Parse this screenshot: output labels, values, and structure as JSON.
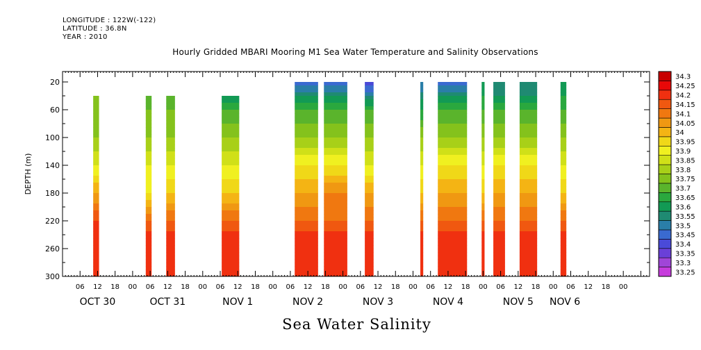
{
  "header": {
    "longitude": "LONGITUDE : 122W(-122)",
    "latitude": "LATITUDE : 36.8N",
    "year": "YEAR : 2010",
    "title": "Hourly Gridded MBARI Mooring M1 Sea Water Temperature and Salinity Observations"
  },
  "chart_data": {
    "type": "heatmap",
    "title": "Hourly Gridded MBARI Mooring M1 Sea Water Temperature and Salinity Observations",
    "xlabel": "Sea Water Salinity",
    "ylabel": "DEPTH (m)",
    "ylim": [
      300,
      5
    ],
    "xlim_hours": [
      0,
      201
    ],
    "y_ticks": [
      20,
      60,
      100,
      140,
      180,
      220,
      260,
      300
    ],
    "x_hour_ticks": [
      "06",
      "12",
      "18",
      "00",
      "06",
      "12",
      "18",
      "00",
      "06",
      "12",
      "18",
      "00",
      "06",
      "12",
      "18",
      "00",
      "06",
      "12",
      "18",
      "00",
      "06",
      "12",
      "18",
      "00",
      "06",
      "12",
      "18",
      "00",
      "06",
      "12",
      "18",
      "00"
    ],
    "x_day_labels": [
      {
        "label": "OCT 30",
        "hour": 12
      },
      {
        "label": "OCT 31",
        "hour": 36
      },
      {
        "label": "NOV  1",
        "hour": 60
      },
      {
        "label": "NOV  2",
        "hour": 84
      },
      {
        "label": "NOV  3",
        "hour": 108
      },
      {
        "label": "NOV  4",
        "hour": 132
      },
      {
        "label": "NOV  5",
        "hour": 156
      },
      {
        "label": "NOV  6",
        "hour": 172
      }
    ],
    "levels": [
      "33.25",
      "33.3",
      "33.35",
      "33.4",
      "33.45",
      "33.5",
      "33.55",
      "33.6",
      "33.65",
      "33.7",
      "33.75",
      "33.8",
      "33.85",
      "33.9",
      "33.95",
      "34",
      "34.05",
      "34.1",
      "34.15",
      "34.2",
      "34.25",
      "34.3"
    ],
    "colors": [
      "#c63cdc",
      "#a045d8",
      "#6a40d8",
      "#4a4ad8",
      "#3a6ad0",
      "#2a7ea8",
      "#1f8a72",
      "#129a54",
      "#2aa83e",
      "#5ab42c",
      "#84c21c",
      "#a8d018",
      "#d0e018",
      "#f0f020",
      "#f0d818",
      "#f4b414",
      "#f09812",
      "#f07810",
      "#f05810",
      "#f03010",
      "#e80808",
      "#c80000"
    ],
    "segments": [
      {
        "start": 10.5,
        "end": 12.5,
        "top_depth": 40,
        "bottom": [
          [
            20,
            33.75
          ],
          [
            60,
            33.75
          ],
          [
            100,
            33.8
          ],
          [
            140,
            33.9
          ],
          [
            180,
            34.05
          ],
          [
            220,
            34.2
          ],
          [
            250,
            34.25
          ],
          [
            300,
            34.2
          ]
        ]
      },
      {
        "start": 28.5,
        "end": 30.5,
        "top_depth": 40,
        "bottom": [
          [
            20,
            33.7
          ],
          [
            60,
            33.75
          ],
          [
            100,
            33.8
          ],
          [
            140,
            33.9
          ],
          [
            180,
            33.95
          ],
          [
            220,
            34.15
          ],
          [
            250,
            34.25
          ],
          [
            300,
            34.2
          ]
        ]
      },
      {
        "start": 35.5,
        "end": 38.5,
        "top_depth": 40,
        "bottom": [
          [
            20,
            33.7
          ],
          [
            60,
            33.75
          ],
          [
            100,
            33.8
          ],
          [
            140,
            33.9
          ],
          [
            180,
            34
          ],
          [
            220,
            34.15
          ],
          [
            250,
            34.25
          ],
          [
            300,
            34.2
          ]
        ]
      },
      {
        "start": 54.5,
        "end": 60.5,
        "top_depth": 40,
        "bottom": [
          [
            20,
            33.55
          ],
          [
            40,
            33.6
          ],
          [
            60,
            33.7
          ],
          [
            100,
            33.8
          ],
          [
            140,
            33.9
          ],
          [
            180,
            34
          ],
          [
            220,
            34.15
          ],
          [
            250,
            34.25
          ],
          [
            300,
            34.2
          ]
        ]
      },
      {
        "start": 79.5,
        "end": 87.5,
        "top_depth": 20,
        "bottom": [
          [
            20,
            33.45
          ],
          [
            40,
            33.6
          ],
          [
            60,
            33.7
          ],
          [
            100,
            33.8
          ],
          [
            140,
            33.95
          ],
          [
            180,
            34.05
          ],
          [
            220,
            34.15
          ],
          [
            250,
            34.25
          ],
          [
            300,
            34.2
          ]
        ]
      },
      {
        "start": 89.5,
        "end": 97.5,
        "top_depth": 20,
        "bottom": [
          [
            20,
            33.45
          ],
          [
            40,
            33.6
          ],
          [
            60,
            33.7
          ],
          [
            100,
            33.8
          ],
          [
            140,
            33.95
          ],
          [
            180,
            34.1
          ],
          [
            220,
            34.15
          ],
          [
            250,
            34.25
          ],
          [
            300,
            34.2
          ]
        ]
      },
      {
        "start": 103.5,
        "end": 106.5,
        "top_depth": 20,
        "bottom": [
          [
            20,
            33.4
          ],
          [
            40,
            33.55
          ],
          [
            60,
            33.7
          ],
          [
            100,
            33.8
          ],
          [
            140,
            33.9
          ],
          [
            180,
            34.05
          ],
          [
            220,
            34.15
          ],
          [
            250,
            34.25
          ],
          [
            300,
            34.2
          ]
        ]
      },
      {
        "start": 122.5,
        "end": 123.5,
        "top_depth": 20,
        "bottom": [
          [
            20,
            33.5
          ],
          [
            60,
            33.65
          ],
          [
            100,
            33.8
          ],
          [
            140,
            33.9
          ],
          [
            180,
            34
          ],
          [
            220,
            34.15
          ],
          [
            250,
            34.25
          ],
          [
            300,
            34.2
          ]
        ]
      },
      {
        "start": 128.5,
        "end": 138.5,
        "top_depth": 20,
        "bottom": [
          [
            20,
            33.45
          ],
          [
            40,
            33.6
          ],
          [
            60,
            33.7
          ],
          [
            100,
            33.8
          ],
          [
            140,
            33.95
          ],
          [
            180,
            34.05
          ],
          [
            220,
            34.15
          ],
          [
            250,
            34.25
          ],
          [
            300,
            34.2
          ]
        ]
      },
      {
        "start": 143.5,
        "end": 144.5,
        "top_depth": 20,
        "bottom": [
          [
            20,
            33.6
          ],
          [
            60,
            33.7
          ],
          [
            100,
            33.8
          ],
          [
            140,
            33.9
          ],
          [
            180,
            34
          ],
          [
            220,
            34.15
          ],
          [
            250,
            34.25
          ],
          [
            300,
            34.2
          ]
        ]
      },
      {
        "start": 147.5,
        "end": 151.5,
        "top_depth": 20,
        "bottom": [
          [
            20,
            33.55
          ],
          [
            40,
            33.6
          ],
          [
            60,
            33.7
          ],
          [
            100,
            33.8
          ],
          [
            140,
            33.95
          ],
          [
            180,
            34.05
          ],
          [
            220,
            34.15
          ],
          [
            250,
            34.25
          ],
          [
            300,
            34.2
          ]
        ]
      },
      {
        "start": 156.5,
        "end": 162.5,
        "top_depth": 20,
        "bottom": [
          [
            20,
            33.55
          ],
          [
            40,
            33.6
          ],
          [
            60,
            33.7
          ],
          [
            100,
            33.8
          ],
          [
            140,
            33.95
          ],
          [
            180,
            34.05
          ],
          [
            220,
            34.15
          ],
          [
            250,
            34.25
          ],
          [
            300,
            34.2
          ]
        ]
      },
      {
        "start": 170.5,
        "end": 172.5,
        "top_depth": 20,
        "bottom": [
          [
            20,
            33.6
          ],
          [
            60,
            33.7
          ],
          [
            100,
            33.8
          ],
          [
            140,
            33.9
          ],
          [
            180,
            34
          ],
          [
            220,
            34.15
          ],
          [
            250,
            34.25
          ],
          [
            300,
            34.2
          ]
        ]
      }
    ]
  }
}
